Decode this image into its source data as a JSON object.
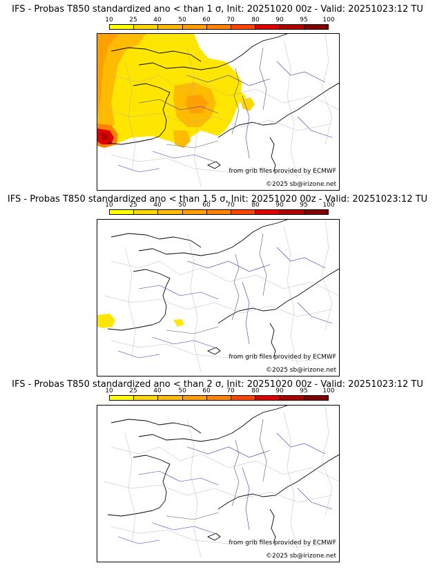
{
  "legend": {
    "ticks": [
      "10",
      "25",
      "40",
      "50",
      "60",
      "70",
      "80",
      "90",
      "95",
      "100"
    ],
    "colors": [
      "#ffff00",
      "#ffd700",
      "#ffbb00",
      "#ff9f00",
      "#ff8300",
      "#ff4400",
      "#e00000",
      "#b00000",
      "#800000",
      "#500000"
    ]
  },
  "panels": [
    {
      "title": "IFS - Probas T850  standardized ano < than 1 σ, Init: 20251020 00z - Valid: 20251023:12 TU",
      "source_text": "from grib files provided by ECMWF",
      "copyright_text": "©2025 sb@irizone.net"
    },
    {
      "title": "IFS - Probas T850  standardized ano < than 1.5 σ, Init: 20251020 00z - Valid: 20251023:12 TU",
      "source_text": "from grib files provided by ECMWF",
      "copyright_text": "©2025 sb@irizone.net"
    },
    {
      "title": "IFS - Probas T850  standardized ano < than 2 σ, Init: 20251020 00z - Valid: 20251023:12 TU",
      "source_text": "from grib files provided by ECMWF",
      "copyright_text": "©2025 sb@irizone.net"
    }
  ]
}
